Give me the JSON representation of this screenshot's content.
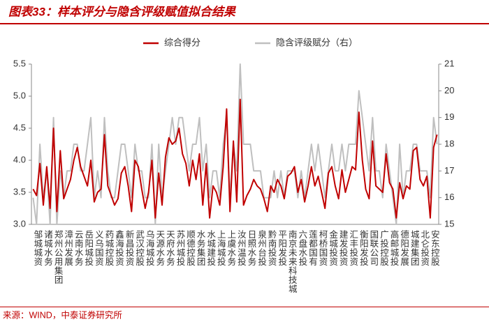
{
  "title": "图表33：样本评分与隐含评级赋值拟合结果",
  "source": "来源：WIND，中泰证券研究所",
  "chart_data": {
    "type": "line",
    "categories": [
      "邹城城资",
      null,
      null,
      "诸城水务",
      null,
      null,
      "郑州公用集团",
      null,
      null,
      "漳州发展",
      null,
      null,
      "云南水务",
      null,
      null,
      "岳阳城投",
      null,
      null,
      "义乌国资",
      null,
      null,
      "药城控股",
      null,
      null,
      "鑫海投资",
      null,
      null,
      "新昌投资",
      null,
      null,
      "武汉控股",
      null,
      null,
      "乌海城投",
      null,
      null,
      "天源水务",
      null,
      null,
      "天府水务",
      null,
      null,
      "苏州城投",
      null,
      null,
      "顺德控股",
      null,
      null,
      "水务集团",
      null,
      null,
      "水城建投",
      null,
      null,
      "上海城投",
      null,
      null,
      "上虞水务",
      null,
      null,
      "汝州温投",
      null,
      null,
      "日照水务",
      null,
      null,
      "泉州台投",
      null,
      null,
      "黔南投资",
      null,
      null,
      "平阳发投",
      null,
      null,
      "南京未来科技城",
      null,
      null,
      "六盘水投",
      null,
      null,
      "莲都国有",
      null,
      null,
      "柯桥国资",
      null,
      null,
      "金城投资",
      null,
      null,
      "建发投资",
      null,
      null,
      "汇丰投资",
      null,
      null,
      "衡阳发投",
      null,
      null,
      "国联公司",
      null,
      null,
      "广投控股",
      null,
      null,
      "高邮城投",
      null,
      null,
      "德阳发展",
      null,
      null,
      "城建集团",
      null,
      null,
      "北仑投资",
      null,
      null,
      "安东控股",
      null,
      null
    ],
    "series": [
      {
        "name": "综合得分",
        "color": "#c00000",
        "values": [
          3.55,
          3.45,
          3.95,
          3.3,
          3.9,
          3.25,
          4.5,
          3.2,
          4.15,
          3.4,
          3.55,
          3.7,
          4.0,
          4.2,
          3.9,
          3.75,
          3.6,
          4.0,
          3.35,
          3.5,
          3.55,
          4.4,
          3.6,
          3.45,
          3.3,
          3.4,
          3.8,
          3.9,
          3.6,
          3.2,
          4.0,
          3.9,
          3.55,
          3.25,
          3.5,
          4.0,
          3.1,
          3.8,
          3.3,
          4.05,
          4.35,
          4.25,
          4.3,
          4.5,
          4.1,
          3.95,
          3.6,
          4.0,
          3.7,
          4.1,
          3.3,
          3.95,
          3.1,
          3.6,
          3.5,
          3.3,
          3.9,
          4.8,
          3.2,
          4.3,
          3.35,
          4.95,
          3.3,
          3.45,
          3.55,
          3.7,
          3.6,
          3.55,
          3.4,
          3.2,
          3.6,
          3.5,
          3.7,
          3.6,
          3.4,
          3.75,
          3.8,
          3.9,
          3.5,
          3.7,
          3.35,
          3.6,
          3.9,
          3.6,
          3.75,
          3.5,
          3.25,
          3.8,
          3.9,
          3.6,
          3.4,
          3.85,
          3.5,
          3.7,
          3.9,
          3.85,
          4.75,
          4.0,
          3.55,
          3.4,
          4.3,
          3.6,
          3.55,
          3.5,
          4.1,
          3.65,
          3.55,
          3.1,
          3.65,
          3.4,
          3.6,
          3.55,
          4.15,
          4.2,
          3.7,
          3.6,
          3.75,
          3.1,
          4.2,
          4.4
        ]
      },
      {
        "name": "隐含评级赋分（右）",
        "color": "#bfbfbf",
        "axis": "y2",
        "values": [
          16,
          15,
          18,
          16,
          17,
          15,
          19,
          15,
          17,
          16,
          17,
          17,
          18,
          18,
          17,
          17,
          18,
          19,
          16,
          17,
          16,
          19,
          17,
          16,
          16,
          17,
          18,
          18,
          17,
          16,
          18,
          17,
          17,
          16,
          16,
          18,
          15,
          18,
          16,
          17,
          18,
          19,
          18,
          19,
          19,
          18,
          17,
          18,
          18,
          19,
          17,
          18,
          16,
          17,
          17,
          16,
          18,
          19,
          16,
          18,
          17,
          21,
          18,
          18,
          18,
          17,
          17,
          17,
          16,
          16,
          16,
          17,
          16,
          17,
          16,
          17,
          17,
          17,
          16,
          17,
          16,
          17,
          18,
          17,
          18,
          17,
          16,
          17,
          18,
          17,
          17,
          18,
          17,
          18,
          18,
          18,
          20,
          19,
          18,
          17,
          19,
          17,
          17,
          16,
          18,
          17,
          16,
          15,
          18,
          16,
          17,
          17,
          18,
          18,
          17,
          17,
          17,
          16,
          19,
          18
        ]
      }
    ],
    "ylim": [
      3,
      5.5
    ],
    "yticks": [
      {
        "value": 3,
        "label": "3.0"
      },
      3.5,
      {
        "value": 4,
        "label": "4.0"
      },
      4.5,
      {
        "value": 5,
        "label": "5.0"
      },
      5.5
    ],
    "y2lim": [
      15,
      21
    ],
    "y2ticks": [
      15,
      16,
      17,
      18,
      19,
      20,
      21
    ],
    "grid": false,
    "legend": "top"
  }
}
